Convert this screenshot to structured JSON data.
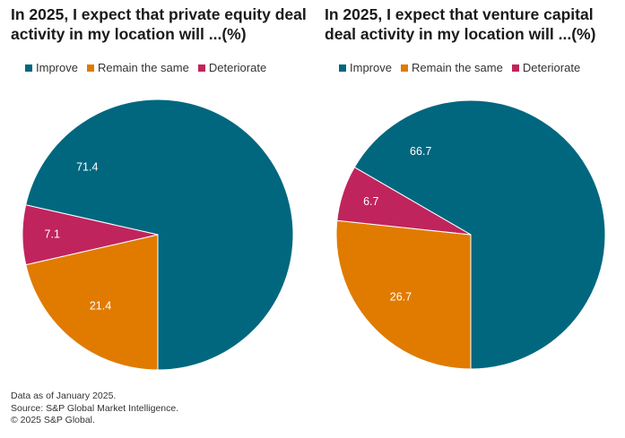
{
  "colors": {
    "improve": "#00677f",
    "remain": "#e07b00",
    "deteriorate": "#c0245c"
  },
  "chart_data": [
    {
      "type": "pie",
      "title": "In 2025, I expect that private equity deal activity in my location will ...(%)",
      "categories": [
        "Improve",
        "Remain the same",
        "Deteriorate"
      ],
      "values": [
        71.4,
        21.4,
        7.1
      ],
      "labels": [
        "71.4",
        "21.4",
        "7.1"
      ],
      "legend_position": "top"
    },
    {
      "type": "pie",
      "title": "In 2025, I expect that venture capital deal activity in my location will ...(%)",
      "categories": [
        "Improve",
        "Remain the same",
        "Deteriorate"
      ],
      "values": [
        66.7,
        26.7,
        6.7
      ],
      "labels": [
        "66.7",
        "26.7",
        "6.7"
      ],
      "legend_position": "top"
    }
  ],
  "footer": {
    "line1": "Data as of January 2025.",
    "line2": "Source: S&P Global Market Intelligence.",
    "line3": "© 2025 S&P Global."
  }
}
